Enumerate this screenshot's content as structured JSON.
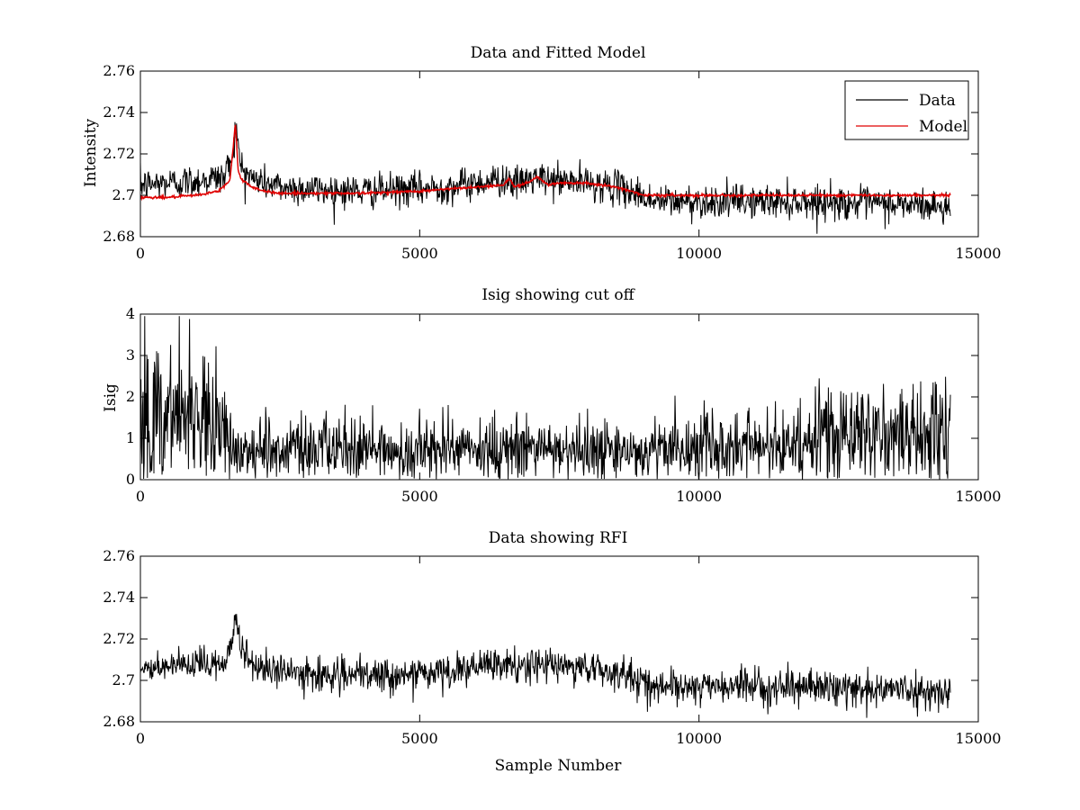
{
  "chart_data": [
    {
      "type": "line",
      "title": "Data and Fitted Model",
      "xlabel": "",
      "ylabel": "Intensity",
      "xlim": [
        0,
        15000
      ],
      "ylim": [
        2.68,
        2.76
      ],
      "xticks": [
        0,
        5000,
        10000,
        15000
      ],
      "xtick_labels": [
        "0",
        "5000",
        "10000",
        "15000"
      ],
      "yticks": [
        2.68,
        2.7,
        2.72,
        2.74,
        2.76
      ],
      "ytick_labels": [
        "2.68",
        "2.7",
        "2.72",
        "2.74",
        "2.76"
      ],
      "grid": false,
      "legend_position": "top-right",
      "series": [
        {
          "name": "Data",
          "color": "#000000",
          "noise": 0.004,
          "x": [
            0,
            500,
            1000,
            1500,
            1650,
            1700,
            1800,
            2000,
            2500,
            3000,
            4000,
            5000,
            5500,
            6000,
            6600,
            6700,
            7000,
            7500,
            8000,
            8500,
            8800,
            9200,
            10000,
            11000,
            12000,
            13000,
            14000,
            14500
          ],
          "y": [
            2.705,
            2.706,
            2.707,
            2.709,
            2.72,
            2.733,
            2.714,
            2.708,
            2.704,
            2.703,
            2.702,
            2.703,
            2.704,
            2.706,
            2.708,
            2.705,
            2.708,
            2.707,
            2.706,
            2.704,
            2.702,
            2.697,
            2.697,
            2.697,
            2.697,
            2.696,
            2.695,
            2.694
          ]
        },
        {
          "name": "Model",
          "color": "#e00000",
          "noise": 0.0003,
          "x": [
            0,
            500,
            1000,
            1400,
            1600,
            1650,
            1700,
            1750,
            1800,
            2000,
            2200,
            2500,
            3000,
            4000,
            5000,
            5500,
            6000,
            6500,
            6600,
            6700,
            7000,
            7100,
            7300,
            7500,
            8000,
            8500,
            8800,
            9000,
            9500,
            10000,
            12000,
            14500
          ],
          "y": [
            2.699,
            2.699,
            2.7,
            2.702,
            2.707,
            2.72,
            2.735,
            2.712,
            2.708,
            2.704,
            2.702,
            2.701,
            2.701,
            2.701,
            2.702,
            2.703,
            2.704,
            2.705,
            2.708,
            2.704,
            2.707,
            2.709,
            2.705,
            2.706,
            2.706,
            2.704,
            2.702,
            2.7,
            2.7,
            2.7,
            2.7,
            2.7
          ]
        }
      ]
    },
    {
      "type": "line",
      "title": "Isig showing cut off",
      "xlabel": "",
      "ylabel": "Isig",
      "xlim": [
        0,
        15000
      ],
      "ylim": [
        0,
        4
      ],
      "xticks": [
        0,
        5000,
        10000,
        15000
      ],
      "xtick_labels": [
        "0",
        "5000",
        "10000",
        "15000"
      ],
      "yticks": [
        0,
        1,
        2,
        3,
        4
      ],
      "ytick_labels": [
        "0",
        "1",
        "2",
        "3",
        "4"
      ],
      "grid": false,
      "series": [
        {
          "name": "Isig",
          "color": "#000000",
          "noise": 0,
          "x": [
            0,
            1400,
            1600,
            9000,
            10000,
            12000,
            12300,
            14500
          ],
          "y": [
            1.7,
            1.6,
            0.7,
            0.7,
            0.75,
            0.8,
            1.1,
            1.1
          ]
        }
      ]
    },
    {
      "type": "line",
      "title": "Data showing RFI",
      "xlabel": "Sample Number",
      "ylabel": "",
      "xlim": [
        0,
        15000
      ],
      "ylim": [
        2.68,
        2.76
      ],
      "xticks": [
        0,
        5000,
        10000,
        15000
      ],
      "xtick_labels": [
        "0",
        "5000",
        "10000",
        "15000"
      ],
      "yticks": [
        2.68,
        2.7,
        2.72,
        2.74,
        2.76
      ],
      "ytick_labels": [
        "2.68",
        "2.7",
        "2.72",
        "2.74",
        "2.76"
      ],
      "grid": false,
      "series": [
        {
          "name": "Data",
          "color": "#000000",
          "noise": 0.004,
          "x": [
            0,
            500,
            1000,
            1500,
            1650,
            1700,
            1800,
            2000,
            2500,
            3000,
            4000,
            5000,
            5500,
            6000,
            6600,
            6700,
            7000,
            7500,
            8000,
            8500,
            8800,
            9200,
            10000,
            11000,
            12000,
            13000,
            14000,
            14500
          ],
          "y": [
            2.705,
            2.706,
            2.707,
            2.709,
            2.72,
            2.733,
            2.714,
            2.708,
            2.704,
            2.703,
            2.702,
            2.703,
            2.704,
            2.706,
            2.708,
            2.705,
            2.708,
            2.707,
            2.706,
            2.704,
            2.702,
            2.697,
            2.697,
            2.697,
            2.697,
            2.696,
            2.695,
            2.694
          ]
        }
      ]
    }
  ]
}
